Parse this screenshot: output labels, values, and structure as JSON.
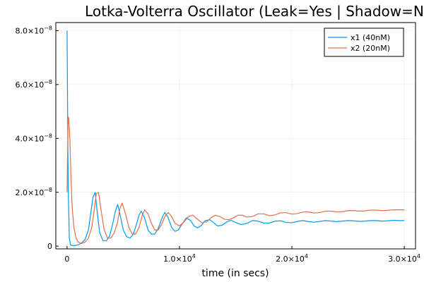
{
  "chart_data": {
    "type": "line",
    "title": "Lotka-Volterra Oscillator (Leak=Yes | Shadow=No)",
    "xlabel": "time (in secs)",
    "ylabel": "",
    "xlim": [
      -1000,
      31000
    ],
    "ylim": [
      -1e-09,
      8.3e-08
    ],
    "grid": true,
    "legend_position": "top-right",
    "x_ticks": [
      {
        "value": 0,
        "label": "0",
        "base": "",
        "exp": ""
      },
      {
        "value": 10000,
        "label": "",
        "base": "1.0×10",
        "exp": "4"
      },
      {
        "value": 20000,
        "label": "",
        "base": "2.0×10",
        "exp": "4"
      },
      {
        "value": 30000,
        "label": "",
        "base": "3.0×10",
        "exp": "4"
      }
    ],
    "y_ticks": [
      {
        "value": 0,
        "label": "0",
        "base": "",
        "exp": ""
      },
      {
        "value": 2e-08,
        "label": "",
        "base": "2.0×10",
        "exp": "−8"
      },
      {
        "value": 4e-08,
        "label": "",
        "base": "4.0×10",
        "exp": "−8"
      },
      {
        "value": 6e-08,
        "label": "",
        "base": "6.0×10",
        "exp": "−8"
      },
      {
        "value": 8e-08,
        "label": "",
        "base": "8.0×10",
        "exp": "−8"
      }
    ],
    "series": [
      {
        "name": "x1 (40nM)",
        "color": "#009AF9",
        "x": [
          0,
          50,
          100,
          200,
          300,
          500,
          800,
          1000,
          1300,
          1600,
          1900,
          2100,
          2300,
          2500,
          2700,
          2900,
          3200,
          3500,
          3800,
          4100,
          4300,
          4500,
          4700,
          5000,
          5300,
          5600,
          5900,
          6200,
          6400,
          6600,
          6900,
          7200,
          7500,
          7800,
          8100,
          8500,
          8700,
          9000,
          9300,
          9600,
          9900,
          10200,
          10600,
          11000,
          11300,
          11600,
          11900,
          12300,
          12700,
          13100,
          13400,
          13800,
          14200,
          14600,
          15000,
          15500,
          16000,
          16500,
          17000,
          17500,
          18000,
          18500,
          19000,
          19500,
          20000,
          20500,
          21000,
          21500,
          22000,
          22500,
          23000,
          23500,
          24000,
          24500,
          25000,
          25500,
          26000,
          26500,
          27000,
          27500,
          28000,
          28500,
          29000,
          29500,
          30000
        ],
        "y": [
          8e-08,
          5e-08,
          2.2e-08,
          3e-09,
          5e-10,
          2e-10,
          3e-10,
          5e-10,
          1.2e-09,
          2.5e-09,
          6e-09,
          1.2e-08,
          1.8e-08,
          2e-08,
          1.2e-08,
          5e-09,
          2e-09,
          2e-09,
          4e-09,
          9e-09,
          1.3e-08,
          1.55e-08,
          1.2e-08,
          6e-09,
          3.5e-09,
          3e-09,
          4.5e-09,
          8.5e-09,
          1.15e-08,
          1.3e-08,
          1.05e-08,
          6e-09,
          4.5e-09,
          4.5e-09,
          6.5e-09,
          1.1e-08,
          1.25e-08,
          1.05e-08,
          7e-09,
          5.5e-09,
          6e-09,
          8e-09,
          1.05e-08,
          9.5e-09,
          7.5e-09,
          6.8e-09,
          7.5e-09,
          9.5e-09,
          9.8e-09,
          8.5e-09,
          7.5e-09,
          7.8e-09,
          9e-09,
          9.6e-09,
          8.8e-09,
          8e-09,
          8.5e-09,
          9.5e-09,
          9.3e-09,
          8.6e-09,
          8.6e-09,
          9.3e-09,
          9.4e-09,
          8.8e-09,
          8.7e-09,
          9.2e-09,
          9.5e-09,
          9.1e-09,
          8.9e-09,
          9.2e-09,
          9.5e-09,
          9.3e-09,
          9.1e-09,
          9.3e-09,
          9.5e-09,
          9.4e-09,
          9.2e-09,
          9.3e-09,
          9.5e-09,
          9.5e-09,
          9.3e-09,
          9.4e-09,
          9.6e-09,
          9.5e-09,
          9.5e-09
        ]
      },
      {
        "name": "x2 (20nM)",
        "color": "#E26F46",
        "x": [
          0,
          50,
          100,
          150,
          250,
          350,
          450,
          600,
          800,
          1000,
          1300,
          1600,
          1900,
          2200,
          2400,
          2600,
          2800,
          3000,
          3300,
          3600,
          3900,
          4200,
          4500,
          4700,
          4900,
          5200,
          5500,
          5800,
          6100,
          6400,
          6700,
          6900,
          7200,
          7500,
          7800,
          8100,
          8400,
          8700,
          9000,
          9300,
          9600,
          10000,
          10400,
          10800,
          11200,
          11600,
          12000,
          12400,
          12800,
          13200,
          13600,
          14000,
          14400,
          14800,
          15200,
          15600,
          16000,
          16500,
          17000,
          17500,
          18000,
          18500,
          19000,
          19500,
          20000,
          20500,
          21000,
          21500,
          22000,
          22500,
          23000,
          23500,
          24000,
          24500,
          25000,
          25500,
          26000,
          26500,
          27000,
          27500,
          28000,
          28500,
          29000,
          29500,
          30000
        ],
        "y": [
          2e-08,
          3.5e-08,
          4.8e-08,
          4.75e-08,
          4e-08,
          2.5e-08,
          1.5e-08,
          7e-09,
          3e-09,
          1.5e-09,
          1e-09,
          1.5e-09,
          3e-09,
          7e-09,
          1.3e-08,
          1.95e-08,
          2e-08,
          1.4e-08,
          6e-09,
          3e-09,
          3e-09,
          5e-09,
          9e-09,
          1.4e-08,
          1.6e-08,
          1.2e-08,
          7e-09,
          4.5e-09,
          4.5e-09,
          7e-09,
          1.15e-08,
          1.35e-08,
          1.2e-08,
          8.5e-09,
          6e-09,
          6e-09,
          8e-09,
          1.1e-08,
          1.25e-08,
          1.1e-08,
          8.5e-09,
          7.5e-09,
          9e-09,
          1.1e-08,
          1.15e-08,
          1e-08,
          8.7e-09,
          9e-09,
          1.05e-08,
          1.15e-08,
          1.1e-08,
          1e-08,
          9.8e-09,
          1.05e-08,
          1.15e-08,
          1.15e-08,
          1.08e-08,
          1.1e-08,
          1.2e-08,
          1.2e-08,
          1.13e-08,
          1.16e-08,
          1.24e-08,
          1.24e-08,
          1.19e-08,
          1.21e-08,
          1.27e-08,
          1.27e-08,
          1.23e-08,
          1.25e-08,
          1.3e-08,
          1.3e-08,
          1.27e-08,
          1.28e-08,
          1.32e-08,
          1.32e-08,
          1.3e-08,
          1.31e-08,
          1.34e-08,
          1.34e-08,
          1.32e-08,
          1.33e-08,
          1.35e-08,
          1.35e-08,
          1.35e-08
        ]
      }
    ]
  }
}
